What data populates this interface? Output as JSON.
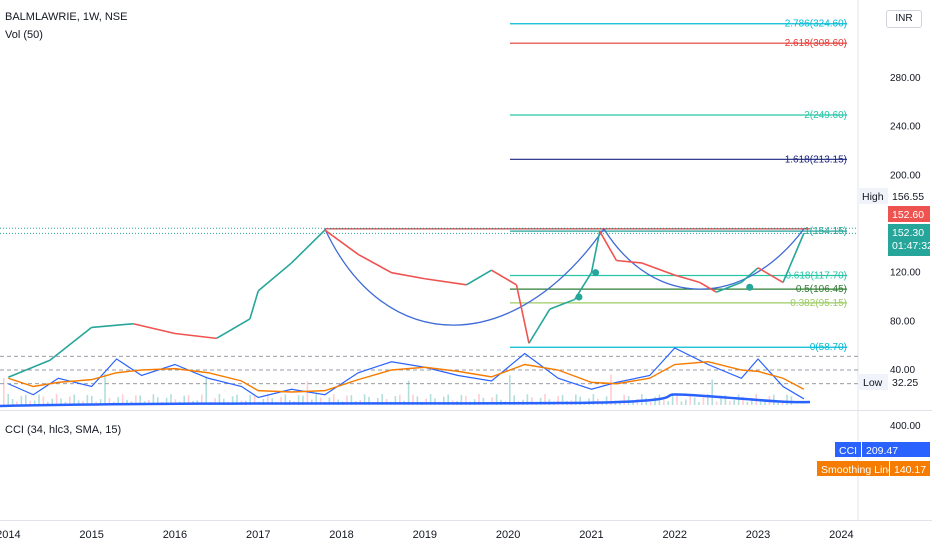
{
  "header": {
    "symbol_line": "BALMLAWRIE, 1W, NSE",
    "volume_label": "Vol (50)",
    "cci_label": "CCI (34, hlc3, SMA, 15)",
    "currency": "INR"
  },
  "price_axis": {
    "ticks": [
      "280.00",
      "240.00",
      "200.00",
      "120.00",
      "80.00",
      "40.00"
    ],
    "tick_values": [
      280,
      240,
      200,
      120,
      80,
      40
    ],
    "range": [
      20,
      345
    ]
  },
  "badges": {
    "high_label": "High",
    "high_value": "156.55",
    "low_label": "Low",
    "low_value": "32.25",
    "prev_price": "152.60",
    "last_price": "152.30",
    "countdown": "01:47:32",
    "cci_name": "CCI",
    "cci_value": "209.47",
    "smooth_name": "Smoothing Line",
    "smooth_value": "140.17",
    "cci_tick": "400.00"
  },
  "fib_levels": [
    {
      "label": "2.786(324.60)",
      "value": 324.6,
      "color": "#00bcd4"
    },
    {
      "label": "2.618(308.60)",
      "value": 308.6,
      "color": "#e53935"
    },
    {
      "label": "2(249.60)",
      "value": 249.6,
      "color": "#26c6a6"
    },
    {
      "label": "1.618(213.15)",
      "value": 213.15,
      "color": "#1a237e"
    },
    {
      "label": "1(154.15)",
      "value": 154.15,
      "color": "#26a69a"
    },
    {
      "label": "0.618(117.70)",
      "value": 117.7,
      "color": "#26c6a6"
    },
    {
      "label": "0.5(106.45)",
      "value": 106.45,
      "color": "#2e7d32"
    },
    {
      "label": "0.382(95.15)",
      "value": 95.15,
      "color": "#9ccc65"
    },
    {
      "label": "0(58.70)",
      "value": 58.7,
      "color": "#00bcd4"
    }
  ],
  "time_axis": {
    "labels": [
      "2014",
      "2015",
      "2016",
      "2017",
      "2018",
      "2019",
      "2020",
      "2021",
      "2022",
      "2023",
      "2024"
    ]
  },
  "chart_data": [
    {
      "type": "line",
      "x": [
        2014.0,
        2014.5,
        2015.0,
        2015.5,
        2016.0,
        2016.5,
        2016.9,
        2017.0,
        2017.4,
        2017.8,
        2018.2,
        2018.6,
        2019.0,
        2019.5,
        2019.8,
        2020.1,
        2020.25,
        2020.5,
        2020.8,
        2021.0,
        2021.1,
        2021.3,
        2021.6,
        2022.0,
        2022.3,
        2022.5,
        2022.8,
        2023.0,
        2023.3,
        2023.55
      ],
      "values": [
        34,
        48,
        75,
        78,
        70,
        66,
        82,
        105,
        128,
        155,
        135,
        120,
        115,
        110,
        122,
        110,
        62,
        90,
        98,
        120,
        154,
        130,
        128,
        118,
        112,
        104,
        112,
        124,
        112,
        152.3
      ],
      "ylim": [
        20,
        345
      ],
      "annotations": [
        "High 156.55",
        "Low 32.25"
      ]
    },
    {
      "type": "line",
      "name": "CCI",
      "x": [
        2014.0,
        2014.3,
        2014.6,
        2015.0,
        2015.3,
        2015.6,
        2016.0,
        2016.4,
        2016.8,
        2017.0,
        2017.4,
        2017.8,
        2018.2,
        2018.6,
        2019.0,
        2019.4,
        2019.8,
        2020.2,
        2020.6,
        2021.0,
        2021.3,
        2021.7,
        2022.0,
        2022.4,
        2022.8,
        2023.0,
        2023.3,
        2023.55
      ],
      "values": [
        100,
        180,
        60,
        120,
        -80,
        40,
        -40,
        60,
        120,
        200,
        140,
        180,
        20,
        -60,
        -20,
        40,
        80,
        -120,
        60,
        140,
        90,
        40,
        -160,
        -40,
        60,
        -80,
        120,
        209.47
      ],
      "smoothing_line": [
        60,
        120,
        90,
        70,
        20,
        0,
        -10,
        20,
        80,
        150,
        160,
        150,
        70,
        0,
        -20,
        10,
        50,
        -40,
        0,
        90,
        100,
        60,
        -40,
        -60,
        0,
        10,
        60,
        140.17
      ],
      "ylim": [
        -300,
        400
      ]
    }
  ]
}
